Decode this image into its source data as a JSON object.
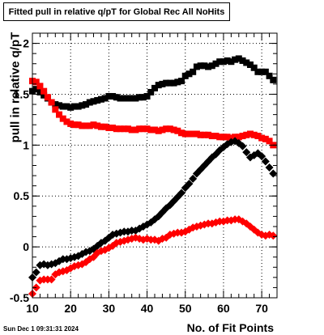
{
  "chart_data": {
    "type": "scatter",
    "title": "Fitted pull in relative q/pT for Global Rec All NoHits",
    "xlabel": "No. of Fit Points",
    "ylabel": "pull in relative q/pT",
    "xlim": [
      10,
      74
    ],
    "ylim": [
      -0.5,
      2.1
    ],
    "xticks": [
      10,
      20,
      30,
      40,
      50,
      60,
      70
    ],
    "yticks": [
      -0.5,
      0,
      0.5,
      1,
      1.5,
      2
    ],
    "grid": true,
    "series": [
      {
        "color": "#000000",
        "marker": "square",
        "x": [
          10,
          11,
          12,
          13,
          14,
          15,
          16,
          17,
          18,
          19,
          20,
          21,
          22,
          23,
          24,
          25,
          26,
          27,
          28,
          29,
          30,
          31,
          32,
          33,
          34,
          35,
          36,
          37,
          38,
          39,
          40,
          41,
          42,
          43,
          44,
          45,
          46,
          47,
          48,
          49,
          50,
          51,
          52,
          53,
          54,
          55,
          56,
          57,
          58,
          59,
          60,
          61,
          62,
          63,
          64,
          65,
          66,
          67,
          68,
          69,
          70,
          71,
          72,
          73
        ],
        "y": [
          1.53,
          1.55,
          1.52,
          1.49,
          1.46,
          1.42,
          1.4,
          1.39,
          1.38,
          1.38,
          1.37,
          1.38,
          1.38,
          1.39,
          1.4,
          1.42,
          1.43,
          1.44,
          1.45,
          1.46,
          1.48,
          1.48,
          1.47,
          1.46,
          1.46,
          1.46,
          1.46,
          1.46,
          1.47,
          1.47,
          1.48,
          1.52,
          1.56,
          1.59,
          1.6,
          1.61,
          1.61,
          1.61,
          1.62,
          1.63,
          1.68,
          1.7,
          1.72,
          1.77,
          1.78,
          1.78,
          1.77,
          1.78,
          1.8,
          1.82,
          1.82,
          1.83,
          1.82,
          1.84,
          1.85,
          1.83,
          1.81,
          1.79,
          1.76,
          1.72,
          1.72,
          1.72,
          1.68,
          1.64
        ]
      },
      {
        "color": "#ff0000",
        "marker": "square",
        "x": [
          10,
          11,
          12,
          13,
          14,
          15,
          16,
          17,
          18,
          19,
          20,
          21,
          22,
          23,
          24,
          25,
          26,
          27,
          28,
          29,
          30,
          31,
          32,
          33,
          34,
          35,
          36,
          37,
          38,
          39,
          40,
          41,
          42,
          43,
          44,
          45,
          46,
          47,
          48,
          49,
          50,
          51,
          52,
          53,
          54,
          55,
          56,
          57,
          58,
          59,
          60,
          61,
          62,
          63,
          64,
          65,
          66,
          67,
          68,
          69,
          70,
          71,
          72,
          73
        ],
        "y": [
          1.63,
          1.62,
          1.58,
          1.53,
          1.47,
          1.42,
          1.35,
          1.3,
          1.26,
          1.23,
          1.21,
          1.2,
          1.2,
          1.19,
          1.19,
          1.19,
          1.2,
          1.19,
          1.18,
          1.18,
          1.17,
          1.17,
          1.16,
          1.16,
          1.16,
          1.16,
          1.15,
          1.15,
          1.16,
          1.16,
          1.16,
          1.15,
          1.15,
          1.14,
          1.15,
          1.16,
          1.16,
          1.15,
          1.14,
          1.12,
          1.11,
          1.11,
          1.11,
          1.11,
          1.1,
          1.1,
          1.1,
          1.09,
          1.09,
          1.08,
          1.08,
          1.08,
          1.07,
          1.08,
          1.08,
          1.09,
          1.1,
          1.11,
          1.1,
          1.09,
          1.07,
          1.06,
          1.04,
          1.0
        ]
      },
      {
        "color": "#000000",
        "marker": "diamond",
        "x": [
          10,
          11,
          12,
          13,
          14,
          15,
          16,
          17,
          18,
          19,
          20,
          21,
          22,
          23,
          24,
          25,
          26,
          27,
          28,
          29,
          30,
          31,
          32,
          33,
          34,
          35,
          36,
          37,
          38,
          39,
          40,
          41,
          42,
          43,
          44,
          45,
          46,
          47,
          48,
          49,
          50,
          51,
          52,
          53,
          54,
          55,
          56,
          57,
          58,
          59,
          60,
          61,
          62,
          63,
          64,
          65,
          66,
          67,
          68,
          69,
          70,
          71,
          72,
          73
        ],
        "y": [
          -0.3,
          -0.25,
          -0.18,
          -0.17,
          -0.18,
          -0.17,
          -0.16,
          -0.14,
          -0.12,
          -0.12,
          -0.11,
          -0.1,
          -0.09,
          -0.07,
          -0.05,
          -0.04,
          -0.02,
          0.01,
          0.04,
          0.06,
          0.09,
          0.12,
          0.13,
          0.14,
          0.15,
          0.15,
          0.16,
          0.16,
          0.18,
          0.2,
          0.22,
          0.24,
          0.27,
          0.3,
          0.34,
          0.38,
          0.41,
          0.45,
          0.49,
          0.53,
          0.58,
          0.62,
          0.67,
          0.72,
          0.76,
          0.8,
          0.84,
          0.88,
          0.91,
          0.95,
          0.98,
          1.01,
          1.03,
          1.04,
          1.02,
          0.99,
          0.93,
          0.88,
          0.9,
          0.92,
          0.89,
          0.84,
          0.78,
          0.72
        ]
      },
      {
        "color": "#ff0000",
        "marker": "diamond",
        "x": [
          10,
          11,
          12,
          13,
          14,
          15,
          16,
          17,
          18,
          19,
          20,
          21,
          22,
          23,
          24,
          25,
          26,
          27,
          28,
          29,
          30,
          31,
          32,
          33,
          34,
          35,
          36,
          37,
          38,
          39,
          40,
          41,
          42,
          43,
          44,
          45,
          46,
          47,
          48,
          49,
          50,
          51,
          52,
          53,
          54,
          55,
          56,
          57,
          58,
          59,
          60,
          61,
          62,
          63,
          64,
          65,
          66,
          67,
          68,
          69,
          70,
          71,
          72,
          73
        ],
        "y": [
          -0.46,
          -0.4,
          -0.33,
          -0.32,
          -0.32,
          -0.32,
          -0.27,
          -0.25,
          -0.24,
          -0.23,
          -0.21,
          -0.19,
          -0.18,
          -0.17,
          -0.15,
          -0.12,
          -0.1,
          -0.06,
          -0.04,
          -0.03,
          -0.01,
          0.01,
          0.04,
          0.05,
          0.06,
          0.07,
          0.08,
          0.09,
          0.08,
          0.07,
          0.08,
          0.07,
          0.07,
          0.06,
          0.08,
          0.09,
          0.12,
          0.13,
          0.14,
          0.14,
          0.15,
          0.17,
          0.19,
          0.2,
          0.21,
          0.22,
          0.23,
          0.23,
          0.24,
          0.25,
          0.25,
          0.26,
          0.26,
          0.27,
          0.27,
          0.25,
          0.23,
          0.2,
          0.17,
          0.14,
          0.12,
          0.11,
          0.12,
          0.11
        ]
      }
    ]
  },
  "datestamp": "Sun Dec  1 09:31:31 2024"
}
